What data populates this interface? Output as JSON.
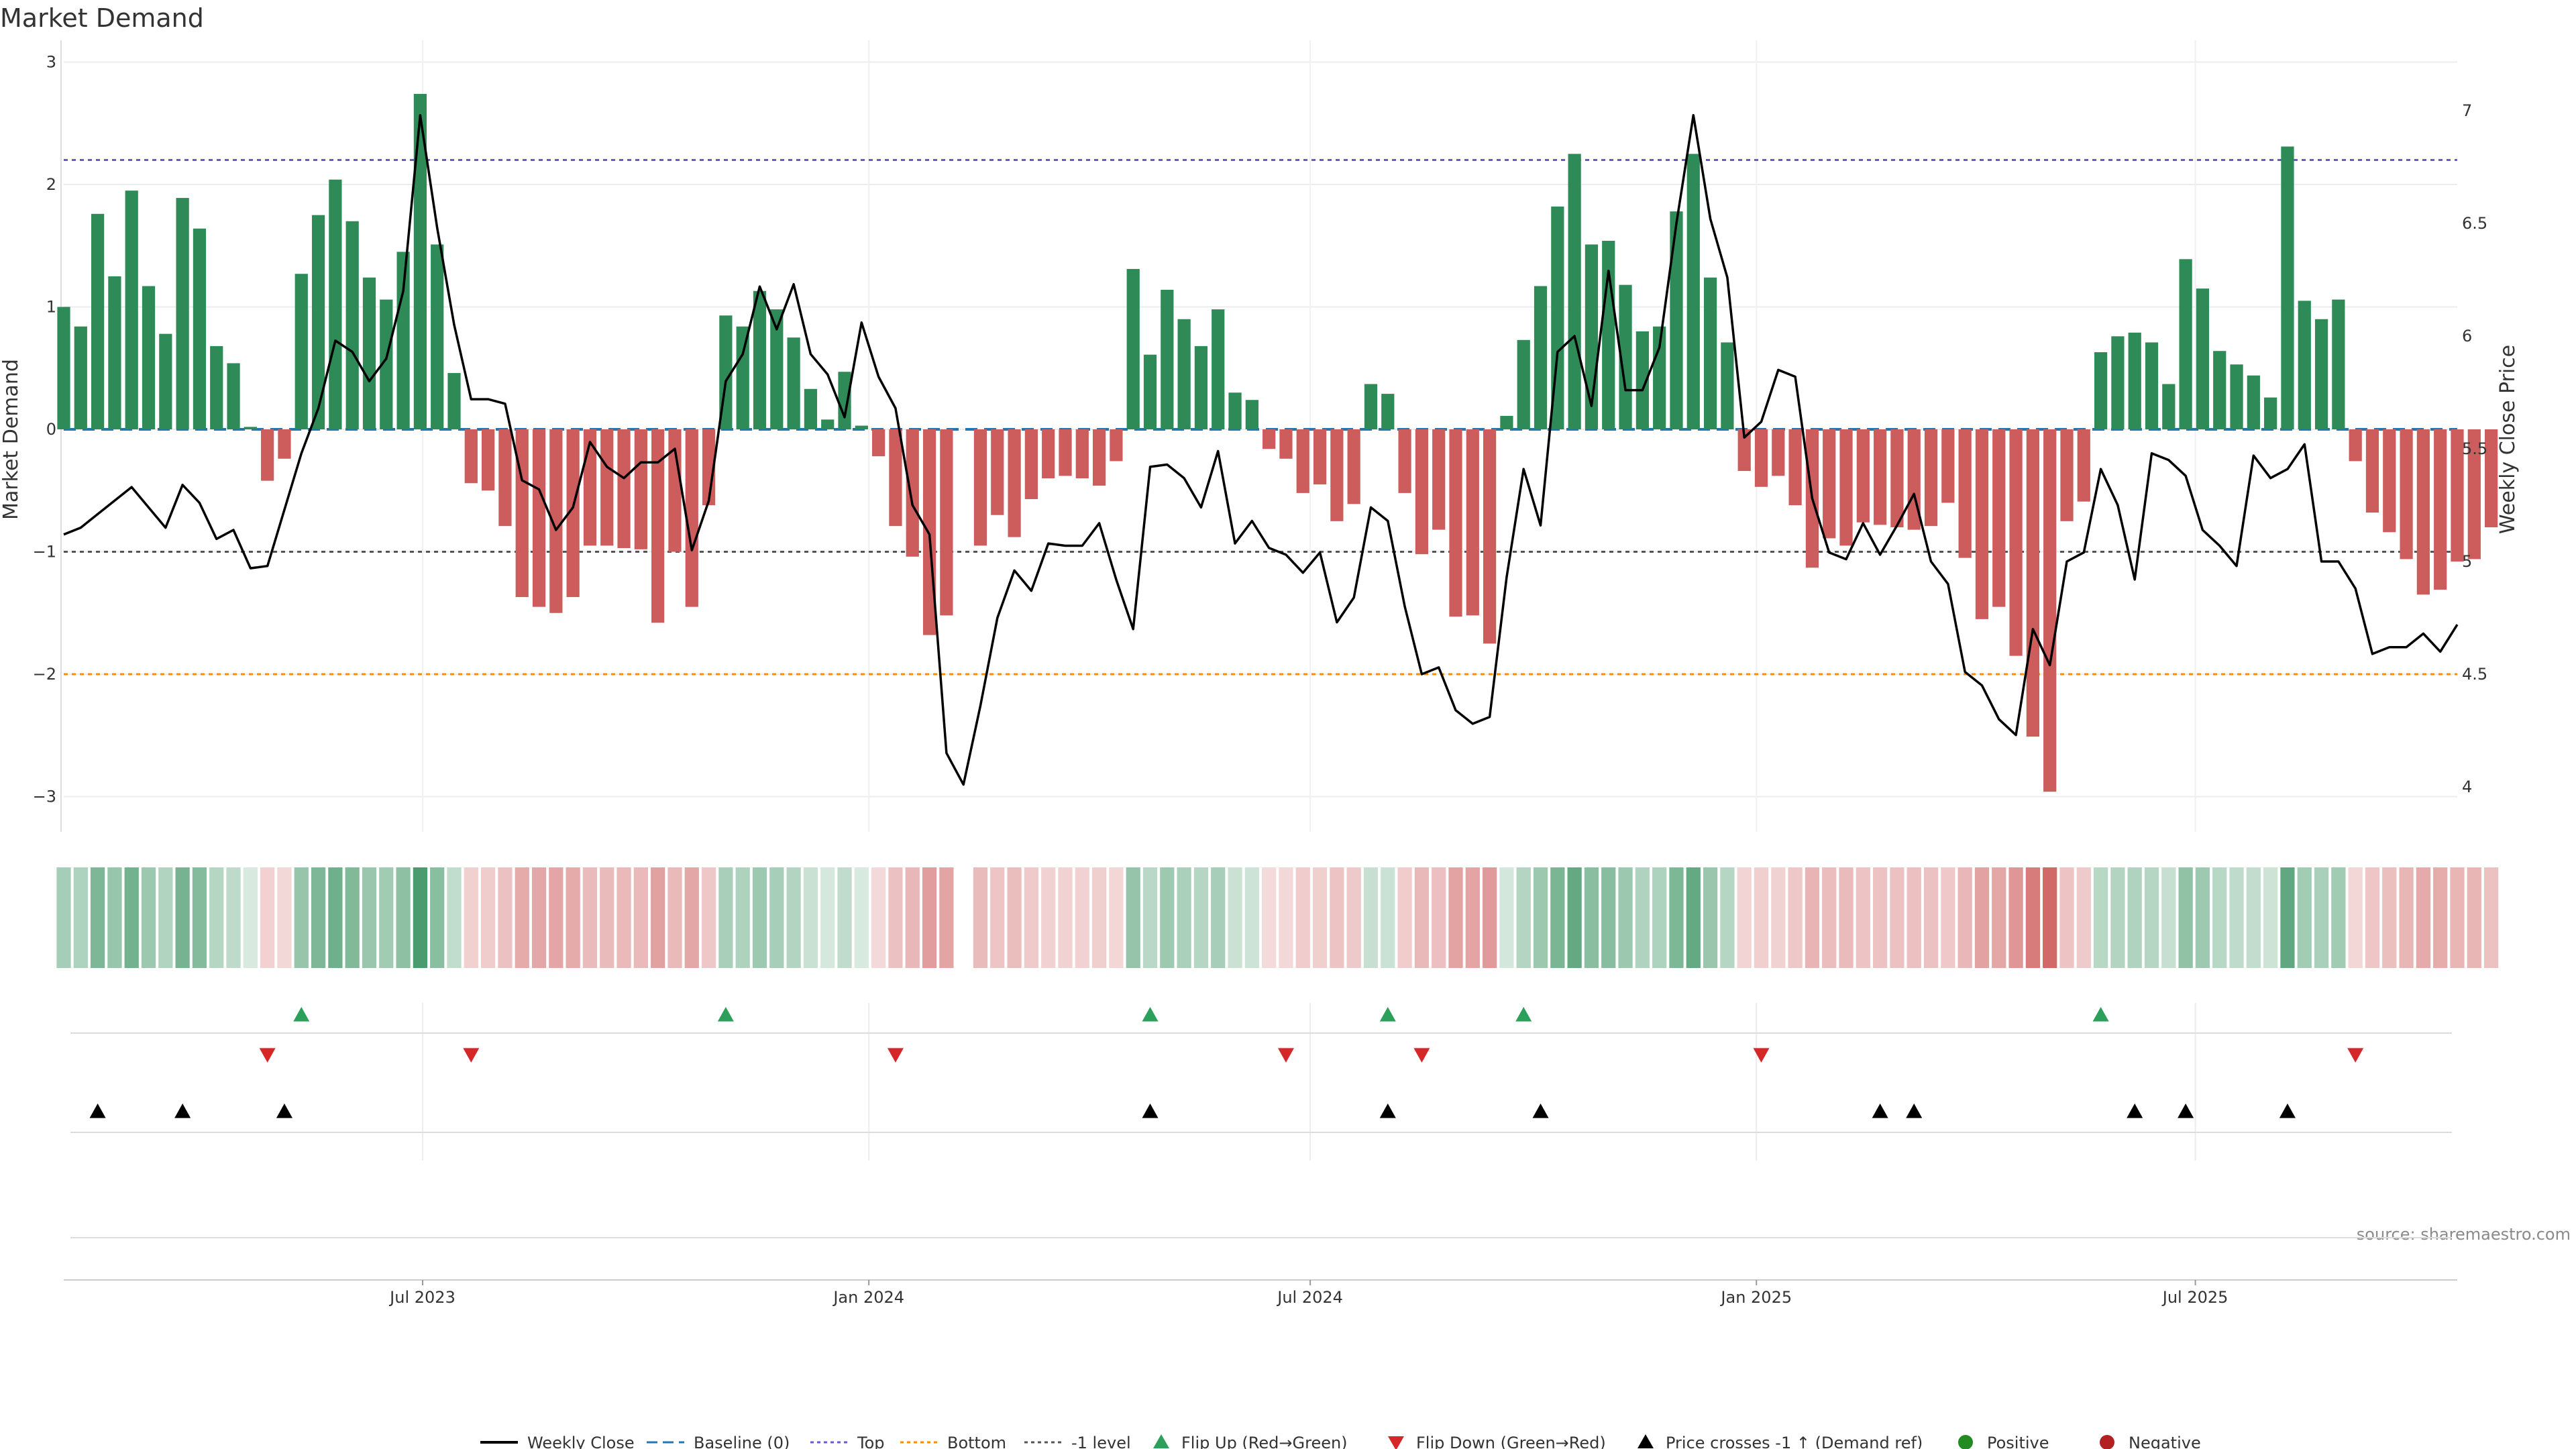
{
  "chart_data": {
    "type": "bar",
    "title": "Market Demand",
    "ylabel_left": "Market Demand",
    "ylabel_right": "Weekly Close Price",
    "source": "source: sharemaestro.com",
    "ylim_left": [
      -3.3,
      3.0
    ],
    "ylim_right": [
      3.9,
      7.25
    ],
    "yticks_left": [
      3,
      2,
      1,
      0,
      -1,
      -2,
      -3
    ],
    "yticks_right": [
      7,
      6.5,
      6,
      5.5,
      5,
      4.5,
      4
    ],
    "ytick_labels_left": [
      "3",
      "2",
      "1",
      "0",
      "−1",
      "−2",
      "−3"
    ],
    "ytick_labels_right": [
      "7",
      "6.5",
      "6",
      "5.5",
      "5",
      "4.5",
      "4"
    ],
    "x_range": [
      "2023-02-03",
      "2025-10-17"
    ],
    "xticks": [
      {
        "date": "2023-07-01",
        "label": "Jul 2023"
      },
      {
        "date": "2024-01-01",
        "label": "Jan 2024"
      },
      {
        "date": "2024-07-01",
        "label": "Jul 2024"
      },
      {
        "date": "2025-01-01",
        "label": "Jan 2025"
      },
      {
        "date": "2025-07-01",
        "label": "Jul 2025"
      }
    ],
    "week_start": "2023-02-03",
    "reference_lines": [
      {
        "name": "Top",
        "value": 2.2,
        "color": "#6a5acd"
      },
      {
        "name": "Bottom",
        "value": -2.0,
        "color": "#ff8c00"
      },
      {
        "name": "-1 level",
        "value": -1.0,
        "color": "#555555"
      },
      {
        "name": "Baseline (0)",
        "value": 0.0,
        "color": "#1f77b4"
      }
    ],
    "demand": [
      1.0,
      0.84,
      1.76,
      1.25,
      1.95,
      1.17,
      0.78,
      1.89,
      1.64,
      0.68,
      0.54,
      0.02,
      -0.42,
      -0.24,
      1.27,
      1.75,
      2.04,
      1.7,
      1.24,
      1.06,
      1.45,
      2.74,
      1.51,
      0.46,
      -0.44,
      -0.5,
      -0.79,
      -1.37,
      -1.45,
      -1.5,
      -1.37,
      -0.95,
      -0.95,
      -0.97,
      -0.98,
      -1.58,
      -1.0,
      -1.45,
      -0.62,
      0.93,
      0.84,
      1.13,
      0.98,
      0.75,
      0.33,
      0.08,
      0.47,
      0.03,
      -0.22,
      -0.79,
      -1.04,
      -1.68,
      -1.52,
      null,
      -0.95,
      -0.7,
      -0.88,
      -0.57,
      -0.4,
      -0.38,
      -0.4,
      -0.46,
      -0.26,
      1.31,
      0.61,
      1.14,
      0.9,
      0.68,
      0.98,
      0.3,
      0.24,
      -0.16,
      -0.24,
      -0.52,
      -0.45,
      -0.75,
      -0.61,
      0.37,
      0.29,
      -0.52,
      -1.02,
      -0.82,
      -1.53,
      -1.52,
      -1.75,
      0.11,
      0.73,
      1.17,
      1.82,
      2.25,
      1.51,
      1.54,
      1.18,
      0.8,
      0.84,
      1.78,
      2.25,
      1.24,
      0.71,
      -0.34,
      -0.47,
      -0.38,
      -0.62,
      -1.13,
      -0.89,
      -0.95,
      -0.76,
      -0.78,
      -0.8,
      -0.82,
      -0.79,
      -0.6,
      -1.05,
      -1.55,
      -1.45,
      -1.85,
      -2.51,
      -2.96,
      -0.75,
      -0.59,
      0.63,
      0.76,
      0.79,
      0.71,
      0.37,
      1.39,
      1.15,
      0.64,
      0.53,
      0.44,
      0.26,
      2.31,
      1.05,
      0.9,
      1.06,
      -0.26,
      -0.68,
      -0.84,
      -1.06,
      -1.35,
      -1.31,
      -1.08,
      -1.06,
      -0.8
    ],
    "price": [
      5.12,
      5.15,
      5.21,
      5.27,
      5.33,
      5.24,
      5.15,
      5.34,
      5.26,
      5.1,
      5.14,
      4.97,
      4.98,
      5.23,
      5.48,
      5.68,
      5.98,
      5.93,
      5.8,
      5.9,
      6.2,
      6.98,
      6.48,
      6.05,
      5.72,
      5.72,
      5.7,
      5.36,
      5.32,
      5.14,
      5.24,
      5.53,
      5.42,
      5.37,
      5.44,
      5.44,
      5.5,
      5.05,
      5.27,
      5.8,
      5.92,
      6.22,
      6.03,
      6.23,
      5.92,
      5.83,
      5.64,
      6.06,
      5.82,
      5.68,
      5.25,
      5.12,
      4.15,
      4.01,
      4.36,
      4.75,
      4.96,
      4.87,
      5.08,
      5.07,
      5.07,
      5.17,
      4.92,
      4.7,
      5.42,
      5.43,
      5.37,
      5.24,
      5.49,
      5.08,
      5.18,
      5.06,
      5.03,
      4.95,
      5.04,
      4.73,
      4.84,
      5.24,
      5.18,
      4.8,
      4.5,
      4.53,
      4.34,
      4.28,
      4.31,
      4.93,
      5.41,
      5.16,
      5.93,
      6.0,
      5.69,
      6.29,
      5.76,
      5.76,
      5.95,
      6.5,
      6.98,
      6.52,
      6.26,
      5.55,
      5.62,
      5.85,
      5.82,
      5.28,
      5.04,
      5.01,
      5.17,
      5.03,
      5.16,
      5.3,
      5.0,
      4.9,
      4.51,
      4.45,
      4.3,
      4.23,
      4.7,
      4.54,
      5.0,
      5.04,
      5.41,
      5.25,
      4.92,
      5.48,
      5.45,
      5.38,
      5.14,
      5.07,
      4.98,
      5.47,
      5.37,
      5.41,
      5.52,
      5.0,
      5.0,
      4.88,
      4.59,
      4.62,
      4.62,
      4.68,
      4.6,
      4.72
    ],
    "strip_label_positive": "Positive",
    "strip_label_negative": "Negative",
    "flip_up_weeks": [
      14,
      39,
      64,
      78,
      86,
      120
    ],
    "flip_down_weeks": [
      12,
      24,
      49,
      72,
      80,
      100,
      135
    ],
    "price_cross_weeks": [
      2,
      7,
      13,
      64,
      78,
      87,
      107,
      109,
      122,
      125,
      131
    ],
    "colors": {
      "positive": "#2e8b57",
      "negative": "#cd5c5c",
      "price_line": "#000000",
      "flip_up": "#2ca05a",
      "flip_down": "#d62728",
      "price_cross": "#000000",
      "legend_positive": "#228b22",
      "legend_negative": "#b22222"
    },
    "legend": [
      {
        "label": "Weekly Close",
        "kind": "line",
        "color": "#000000"
      },
      {
        "label": "Baseline (0)",
        "kind": "dash",
        "color": "#1f77b4"
      },
      {
        "label": "Top",
        "kind": "dot",
        "color": "#6a5acd"
      },
      {
        "label": "Bottom",
        "kind": "dot",
        "color": "#ff8c00"
      },
      {
        "label": "-1 level",
        "kind": "dot",
        "color": "#555555"
      },
      {
        "label": "Flip Up (Red→Green)",
        "kind": "tri-up",
        "color": "#2ca05a"
      },
      {
        "label": "Flip Down (Green→Red)",
        "kind": "tri-down",
        "color": "#d62728"
      },
      {
        "label": "Price crosses -1 ↑ (Demand ref)",
        "kind": "tri-up",
        "color": "#000000"
      },
      {
        "label": "Positive",
        "kind": "circle",
        "color": "#228b22"
      },
      {
        "label": "Negative",
        "kind": "circle",
        "color": "#b22222"
      }
    ]
  }
}
